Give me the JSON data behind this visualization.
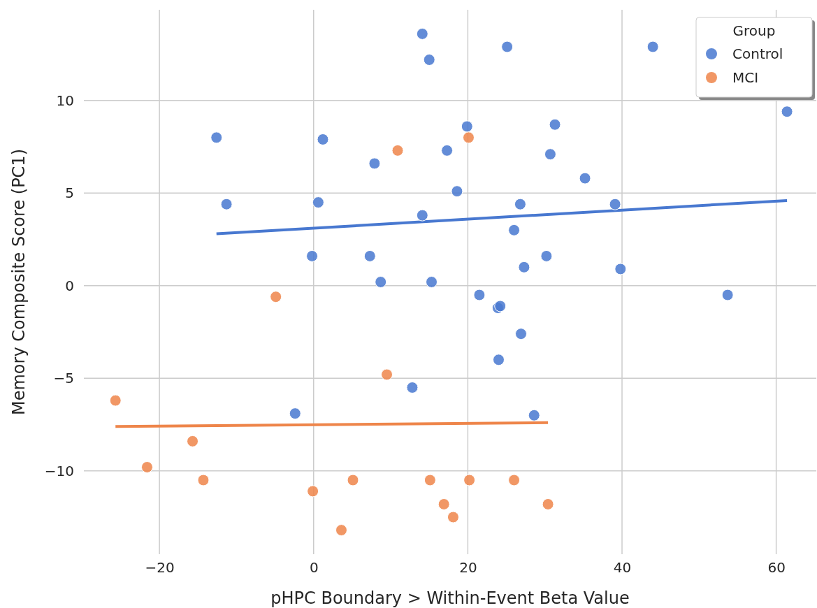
{
  "chart_data": {
    "type": "scatter",
    "xlabel": "pHPC Boundary > Within-Event Beta Value",
    "ylabel": "Memory Composite Score (PC1)",
    "legend_title": "Group",
    "legend": "top right",
    "grid": true,
    "marker": "circle",
    "xlim": [
      -29.8,
      65.2
    ],
    "ylim": [
      -14.5,
      14.9
    ],
    "xticks": [
      {
        "value": -20,
        "label": "−20"
      },
      0,
      20,
      40,
      60
    ],
    "yticks": [
      {
        "value": -10,
        "label": "−10"
      },
      {
        "value": -5,
        "label": "−5"
      },
      0,
      5,
      10
    ],
    "series": [
      {
        "name": "Control",
        "color": "#4878d0",
        "x": [
          14.1,
          15.0,
          25.1,
          44.0,
          61.4,
          -12.6,
          1.2,
          19.9,
          31.3,
          7.9,
          17.3,
          30.7,
          18.6,
          35.2,
          -11.3,
          0.6,
          14.1,
          26.8,
          26.0,
          39.1,
          -0.2,
          7.3,
          27.3,
          30.2,
          39.8,
          8.7,
          15.3,
          21.5,
          53.7,
          23.9,
          24.2,
          26.9,
          24.0,
          12.8,
          -2.4,
          28.6
        ],
        "values": [
          13.6,
          12.2,
          12.9,
          12.9,
          9.4,
          8.0,
          7.9,
          8.6,
          8.7,
          6.6,
          7.3,
          7.1,
          5.1,
          5.8,
          4.4,
          4.5,
          3.8,
          4.4,
          3.0,
          4.4,
          1.6,
          1.6,
          1.0,
          1.6,
          0.9,
          0.2,
          0.2,
          -0.5,
          -0.5,
          -1.2,
          -1.1,
          -2.6,
          -4.0,
          -5.5,
          -6.9,
          -7.0
        ]
      },
      {
        "name": "MCI",
        "color": "#ee854a",
        "x": [
          10.9,
          20.1,
          -4.9,
          9.5,
          -25.7,
          -15.7,
          -21.6,
          -14.3,
          -0.1,
          5.1,
          15.1,
          20.2,
          26.0,
          16.9,
          18.1,
          30.4,
          3.6
        ],
        "values": [
          7.3,
          8.0,
          -0.6,
          -4.8,
          -6.2,
          -8.4,
          -9.8,
          -10.5,
          -11.1,
          -10.5,
          -10.5,
          -10.5,
          -10.5,
          -11.8,
          -12.5,
          -11.8,
          -13.2
        ]
      },
      {
        "type": "line",
        "marker": "none",
        "color": "#4878d0",
        "x": [
          -12.6,
          61.4
        ],
        "values": [
          2.8,
          4.6
        ]
      },
      {
        "type": "line",
        "marker": "none",
        "color": "#ee854a",
        "x": [
          -25.7,
          30.4
        ],
        "values": [
          -7.6,
          -7.4
        ]
      }
    ]
  }
}
